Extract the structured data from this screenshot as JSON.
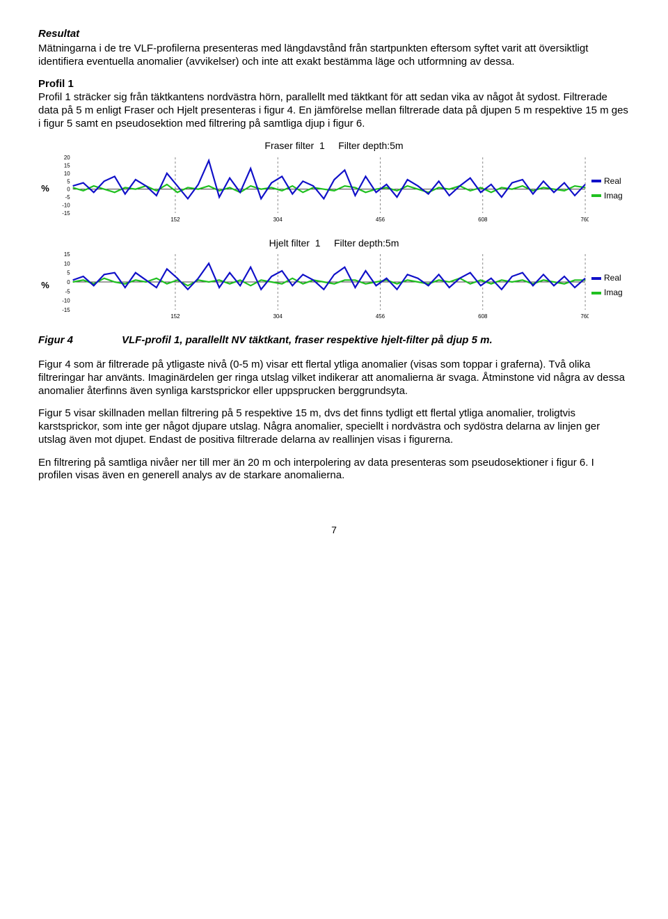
{
  "resultat_heading": "Resultat",
  "resultat_intro": "Mätningarna i de tre VLF-profilerna presenteras med längdavstånd från startpunkten eftersom syftet varit att översiktligt identifiera eventuella anomalier (avvikelser) och inte att exakt bestämma läge och utformning av dessa.",
  "profil1_heading": "Profil 1",
  "profil1_text": "Profil 1 sträcker sig från täktkantens nordvästra hörn, parallellt med täktkant för att sedan vika av något åt sydost. Filtrerade data på 5 m enligt Fraser och Hjelt presenteras i figur 4. En jämförelse mellan filtrerade data på djupen 5 m respektive 15 m ges i figur 5 samt en pseudosektion med filtrering på samtliga djup i figur 6.",
  "charts": {
    "fraser": {
      "title_prefix": "Fraser filter",
      "title_num": "1",
      "title_depth": "Filter depth:5m",
      "y_label": "%",
      "y_ticks": [
        20,
        15,
        10,
        5,
        0,
        -5,
        -10,
        -15
      ],
      "x_ticks": [
        152,
        304,
        456,
        608,
        760
      ],
      "x_max": 760,
      "bg": "#ffffff",
      "grid_color": "#6b6b6b",
      "real_color": "#1010c8",
      "imag_color": "#20c020",
      "real": [
        2,
        4,
        -2,
        5,
        8,
        -3,
        6,
        2,
        -4,
        10,
        2,
        -6,
        3,
        18,
        -5,
        7,
        -2,
        13,
        -6,
        4,
        8,
        -3,
        5,
        2,
        -6,
        6,
        12,
        -4,
        8,
        -2,
        3,
        -5,
        6,
        2,
        -3,
        5,
        -4,
        2,
        7,
        -2,
        3,
        -5,
        4,
        6,
        -3,
        5,
        -2,
        4,
        -4,
        3
      ],
      "imag": [
        1,
        -1,
        2,
        0,
        -2,
        1,
        0,
        2,
        -1,
        3,
        -2,
        1,
        0,
        2,
        -1,
        1,
        -2,
        2,
        0,
        1,
        -1,
        2,
        -2,
        1,
        0,
        -1,
        2,
        1,
        -2,
        0,
        1,
        -1,
        2,
        0,
        -2,
        1,
        0,
        2,
        -1,
        1,
        -2,
        1,
        0,
        2,
        -1,
        1,
        0,
        -1,
        2,
        1
      ]
    },
    "hjelt": {
      "title_prefix": "Hjelt filter",
      "title_num": "1",
      "title_depth": "Filter depth:5m",
      "y_label": "%",
      "y_ticks": [
        15,
        10,
        5,
        0,
        -5,
        -10,
        -15
      ],
      "x_ticks": [
        152,
        304,
        456,
        608,
        760
      ],
      "x_max": 760,
      "bg": "#ffffff",
      "grid_color": "#6b6b6b",
      "real_color": "#1010c8",
      "imag_color": "#20c020",
      "real": [
        1,
        3,
        -2,
        4,
        5,
        -3,
        5,
        1,
        -3,
        7,
        2,
        -4,
        2,
        10,
        -3,
        5,
        -2,
        8,
        -4,
        3,
        6,
        -2,
        4,
        1,
        -4,
        4,
        8,
        -3,
        6,
        -2,
        2,
        -4,
        4,
        2,
        -2,
        4,
        -3,
        2,
        5,
        -2,
        2,
        -4,
        3,
        5,
        -2,
        4,
        -2,
        3,
        -3,
        2
      ],
      "imag": [
        0,
        1,
        -1,
        2,
        0,
        -1,
        1,
        0,
        2,
        -1,
        1,
        -2,
        1,
        0,
        1,
        -1,
        1,
        -2,
        1,
        0,
        -1,
        2,
        -1,
        1,
        0,
        -1,
        1,
        1,
        -1,
        0,
        1,
        -1,
        1,
        0,
        -1,
        1,
        0,
        2,
        -1,
        1,
        -1,
        1,
        0,
        1,
        -1,
        1,
        0,
        -1,
        1,
        1
      ]
    },
    "legend": {
      "real": "Real",
      "imag": "Imag"
    }
  },
  "figure4_label": "Figur 4",
  "figure4_caption": "VLF-profil 1, parallellt NV täktkant, fraser respektive hjelt-filter på djup 5 m.",
  "para_fig4": "Figur 4 som är filtrerade på ytligaste nivå (0-5 m) visar ett flertal ytliga anomalier (visas som toppar i graferna). Två olika filtreringar har använts. Imaginärdelen ger ringa utslag vilket indikerar att anomalierna är svaga. Åtminstone vid några av dessa anomalier återfinns även synliga karstsprickor eller uppsprucken berggrundsyta.",
  "para_fig5": "Figur 5 visar skillnaden mellan filtrering på 5 respektive 15 m, dvs det finns tydligt ett flertal ytliga anomalier, troligtvis karstsprickor, som inte ger något djupare utslag. Några anomalier, speciellt i nordvästra och sydöstra delarna av linjen ger utslag även mot djupet. Endast de positiva filtrerade delarna av reallinjen visas i figurerna.",
  "para_fig6": "En filtrering på samtliga nivåer ner till mer än 20 m och interpolering av data presenteras som pseudosektioner i figur 6. I profilen visas även en generell analys av de starkare anomalierna.",
  "page_number": "7"
}
